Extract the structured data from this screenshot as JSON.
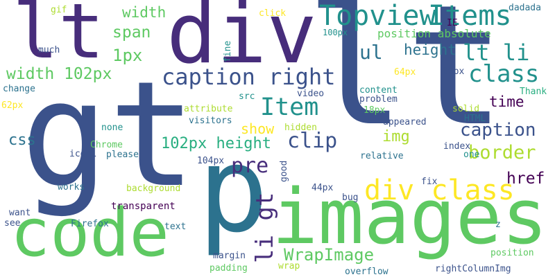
{
  "palette": {
    "dark_purple": "#440154",
    "purple": "#472d7b",
    "indigo": "#3b528b",
    "blue": "#2c728e",
    "teal": "#21918c",
    "green_teal": "#28ae80",
    "green": "#5ec962",
    "yellow_green": "#addc30",
    "yellow": "#fde725"
  },
  "words": [
    {
      "key": "gt",
      "text": "gt",
      "color": "#3b528b"
    },
    {
      "key": "lt_big",
      "text": "lt",
      "color": "#3b528b"
    },
    {
      "key": "lt_left",
      "text": "lt",
      "color": "#472d7b"
    },
    {
      "key": "div",
      "text": "div",
      "color": "#472d7b"
    },
    {
      "key": "p",
      "text": "p",
      "color": "#2c728e"
    },
    {
      "key": "images",
      "text": "images",
      "color": "#5ec962"
    },
    {
      "key": "code",
      "text": "code",
      "color": "#5ec962"
    },
    {
      "key": "topview",
      "text": "Topview",
      "color": "#21918c"
    },
    {
      "key": "items",
      "text": "Items",
      "color": "#21918c"
    },
    {
      "key": "caption_right",
      "text": "caption right",
      "color": "#3b528b"
    },
    {
      "key": "div_class",
      "text": "div class",
      "color": "#fde725"
    },
    {
      "key": "lt_li",
      "text": "lt li",
      "color": "#21918c"
    },
    {
      "key": "class",
      "text": "class",
      "color": "#21918c"
    },
    {
      "key": "item",
      "text": "Item",
      "color": "#21918c"
    },
    {
      "key": "pre",
      "text": "pre",
      "color": "#472d7b"
    },
    {
      "key": "clip",
      "text": "clip",
      "color": "#3b528b"
    },
    {
      "key": "width_102px",
      "text": "width 102px",
      "color": "#5ec962"
    },
    {
      "key": "height_102px",
      "text": "102px height",
      "color": "#28ae80"
    },
    {
      "key": "caption",
      "text": "caption",
      "color": "#3b528b"
    },
    {
      "key": "border",
      "text": "border",
      "color": "#addc30"
    },
    {
      "key": "wrapimage",
      "text": "WrapImage",
      "color": "#5ec962"
    },
    {
      "key": "li_gt",
      "text": "li gt",
      "color": "#472d7b"
    },
    {
      "key": "width",
      "text": "width",
      "color": "#5ec962"
    },
    {
      "key": "span",
      "text": "span",
      "color": "#5ec962"
    },
    {
      "key": "1px",
      "text": "1px",
      "color": "#5ec962"
    },
    {
      "key": "ul",
      "text": "ul",
      "color": "#2c728e"
    },
    {
      "key": "height",
      "text": "height",
      "color": "#2c728e"
    },
    {
      "key": "time",
      "text": "time",
      "color": "#440154"
    },
    {
      "key": "href",
      "text": "href",
      "color": "#440154"
    },
    {
      "key": "img",
      "text": "img",
      "color": "#addc30"
    },
    {
      "key": "show",
      "text": "show",
      "color": "#fde725"
    },
    {
      "key": "css",
      "text": "css",
      "color": "#2c728e"
    },
    {
      "key": "position_absolute",
      "text": "position absolute",
      "color": "#5ec962"
    },
    {
      "key": "gif",
      "text": "gif",
      "color": "#addc30"
    },
    {
      "key": "click",
      "text": "click",
      "color": "#fde725"
    },
    {
      "key": "dadada",
      "text": "dadada",
      "color": "#2c728e"
    },
    {
      "key": "ie",
      "text": "IE",
      "color": "#440154"
    },
    {
      "key": "100px",
      "text": "100px",
      "color": "#21918c"
    },
    {
      "key": "much",
      "text": "much",
      "color": "#3b528b"
    },
    {
      "key": "fine",
      "text": "fine",
      "color": "#21918c"
    },
    {
      "key": "64px",
      "text": "64px",
      "color": "#fde725"
    },
    {
      "key": "60px",
      "text": "60px",
      "color": "#3b528b"
    },
    {
      "key": "change",
      "text": "change",
      "color": "#2c728e"
    },
    {
      "key": "62px",
      "text": "62px",
      "color": "#fde725"
    },
    {
      "key": "src",
      "text": "src",
      "color": "#21918c"
    },
    {
      "key": "video",
      "text": "video",
      "color": "#3b528b"
    },
    {
      "key": "content",
      "text": "content",
      "color": "#21918c"
    },
    {
      "key": "problem",
      "text": "problem",
      "color": "#3b528b"
    },
    {
      "key": "thank",
      "text": "Thank",
      "color": "#28ae80"
    },
    {
      "key": "attribute",
      "text": "attribute",
      "color": "#addc30"
    },
    {
      "key": "18px",
      "text": "18px",
      "color": "#5ec962"
    },
    {
      "key": "solid",
      "text": "solid",
      "color": "#addc30"
    },
    {
      "key": "visitors",
      "text": "visitors",
      "color": "#2c728e"
    },
    {
      "key": "appeared",
      "text": "appeared",
      "color": "#3b528b"
    },
    {
      "key": "html",
      "text": "HTML",
      "color": "#2c728e"
    },
    {
      "key": "none",
      "text": "none",
      "color": "#21918c"
    },
    {
      "key": "hidden",
      "text": "hidden",
      "color": "#addc30"
    },
    {
      "key": "chrome",
      "text": "Chrome",
      "color": "#5ec962"
    },
    {
      "key": "icon1",
      "text": "icon1",
      "color": "#3b528b"
    },
    {
      "key": "please",
      "text": "please",
      "color": "#2c728e"
    },
    {
      "key": "index",
      "text": "index",
      "color": "#3b528b"
    },
    {
      "key": "one",
      "text": "one",
      "color": "#21918c"
    },
    {
      "key": "relative",
      "text": "relative",
      "color": "#2c728e"
    },
    {
      "key": "104px",
      "text": "104px",
      "color": "#3b528b"
    },
    {
      "key": "good",
      "text": "good",
      "color": "#3b528b"
    },
    {
      "key": "works",
      "text": "works",
      "color": "#2c728e"
    },
    {
      "key": "background",
      "text": "background",
      "color": "#addc30"
    },
    {
      "key": "44px",
      "text": "44px",
      "color": "#3b528b"
    },
    {
      "key": "fix",
      "text": "fix",
      "color": "#3b528b"
    },
    {
      "key": "bug",
      "text": "bug",
      "color": "#3b528b"
    },
    {
      "key": "transparent",
      "text": "transparent",
      "color": "#440154"
    },
    {
      "key": "want",
      "text": "want",
      "color": "#3b528b"
    },
    {
      "key": "see",
      "text": "see",
      "color": "#3b528b"
    },
    {
      "key": "firefox",
      "text": "Firefox",
      "color": "#2c728e"
    },
    {
      "key": "z",
      "text": "z",
      "color": "#2c728e"
    },
    {
      "key": "text",
      "text": "text",
      "color": "#2c728e"
    },
    {
      "key": "position",
      "text": "position",
      "color": "#5ec962"
    },
    {
      "key": "margin",
      "text": "margin",
      "color": "#3b528b"
    },
    {
      "key": "padding",
      "text": "padding",
      "color": "#5ec962"
    },
    {
      "key": "wrap",
      "text": "wrap",
      "color": "#addc30"
    },
    {
      "key": "overflow",
      "text": "overflow",
      "color": "#2c728e"
    },
    {
      "key": "rightcolumnimg",
      "text": "rightColumnImg",
      "color": "#3b528b"
    }
  ]
}
